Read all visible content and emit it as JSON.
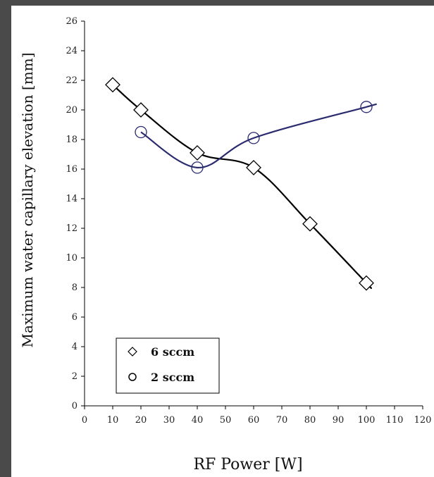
{
  "chart_data": {
    "type": "line",
    "title": "",
    "xlabel": "RF Power [W]",
    "ylabel": "Maximum water capillary elevation [mm]",
    "xlim": [
      0,
      120
    ],
    "ylim": [
      0,
      26
    ],
    "x_ticks": [
      0,
      10,
      20,
      30,
      40,
      50,
      60,
      70,
      80,
      90,
      100,
      110,
      120
    ],
    "y_ticks": [
      0,
      2,
      4,
      6,
      8,
      10,
      12,
      14,
      16,
      18,
      20,
      22,
      24,
      26
    ],
    "grid": false,
    "legend_position": "bottom-left",
    "series": [
      {
        "name": "6 sccm",
        "marker": "diamond",
        "color": "#000000",
        "x": [
          10,
          20,
          40,
          60,
          80,
          100
        ],
        "y": [
          21.7,
          20.0,
          17.1,
          16.1,
          12.3,
          8.3
        ]
      },
      {
        "name": "2 sccm",
        "marker": "circle",
        "color": "#2a2a6e",
        "x": [
          20,
          40,
          60,
          100
        ],
        "y": [
          18.5,
          16.1,
          18.1,
          20.2
        ]
      }
    ]
  }
}
